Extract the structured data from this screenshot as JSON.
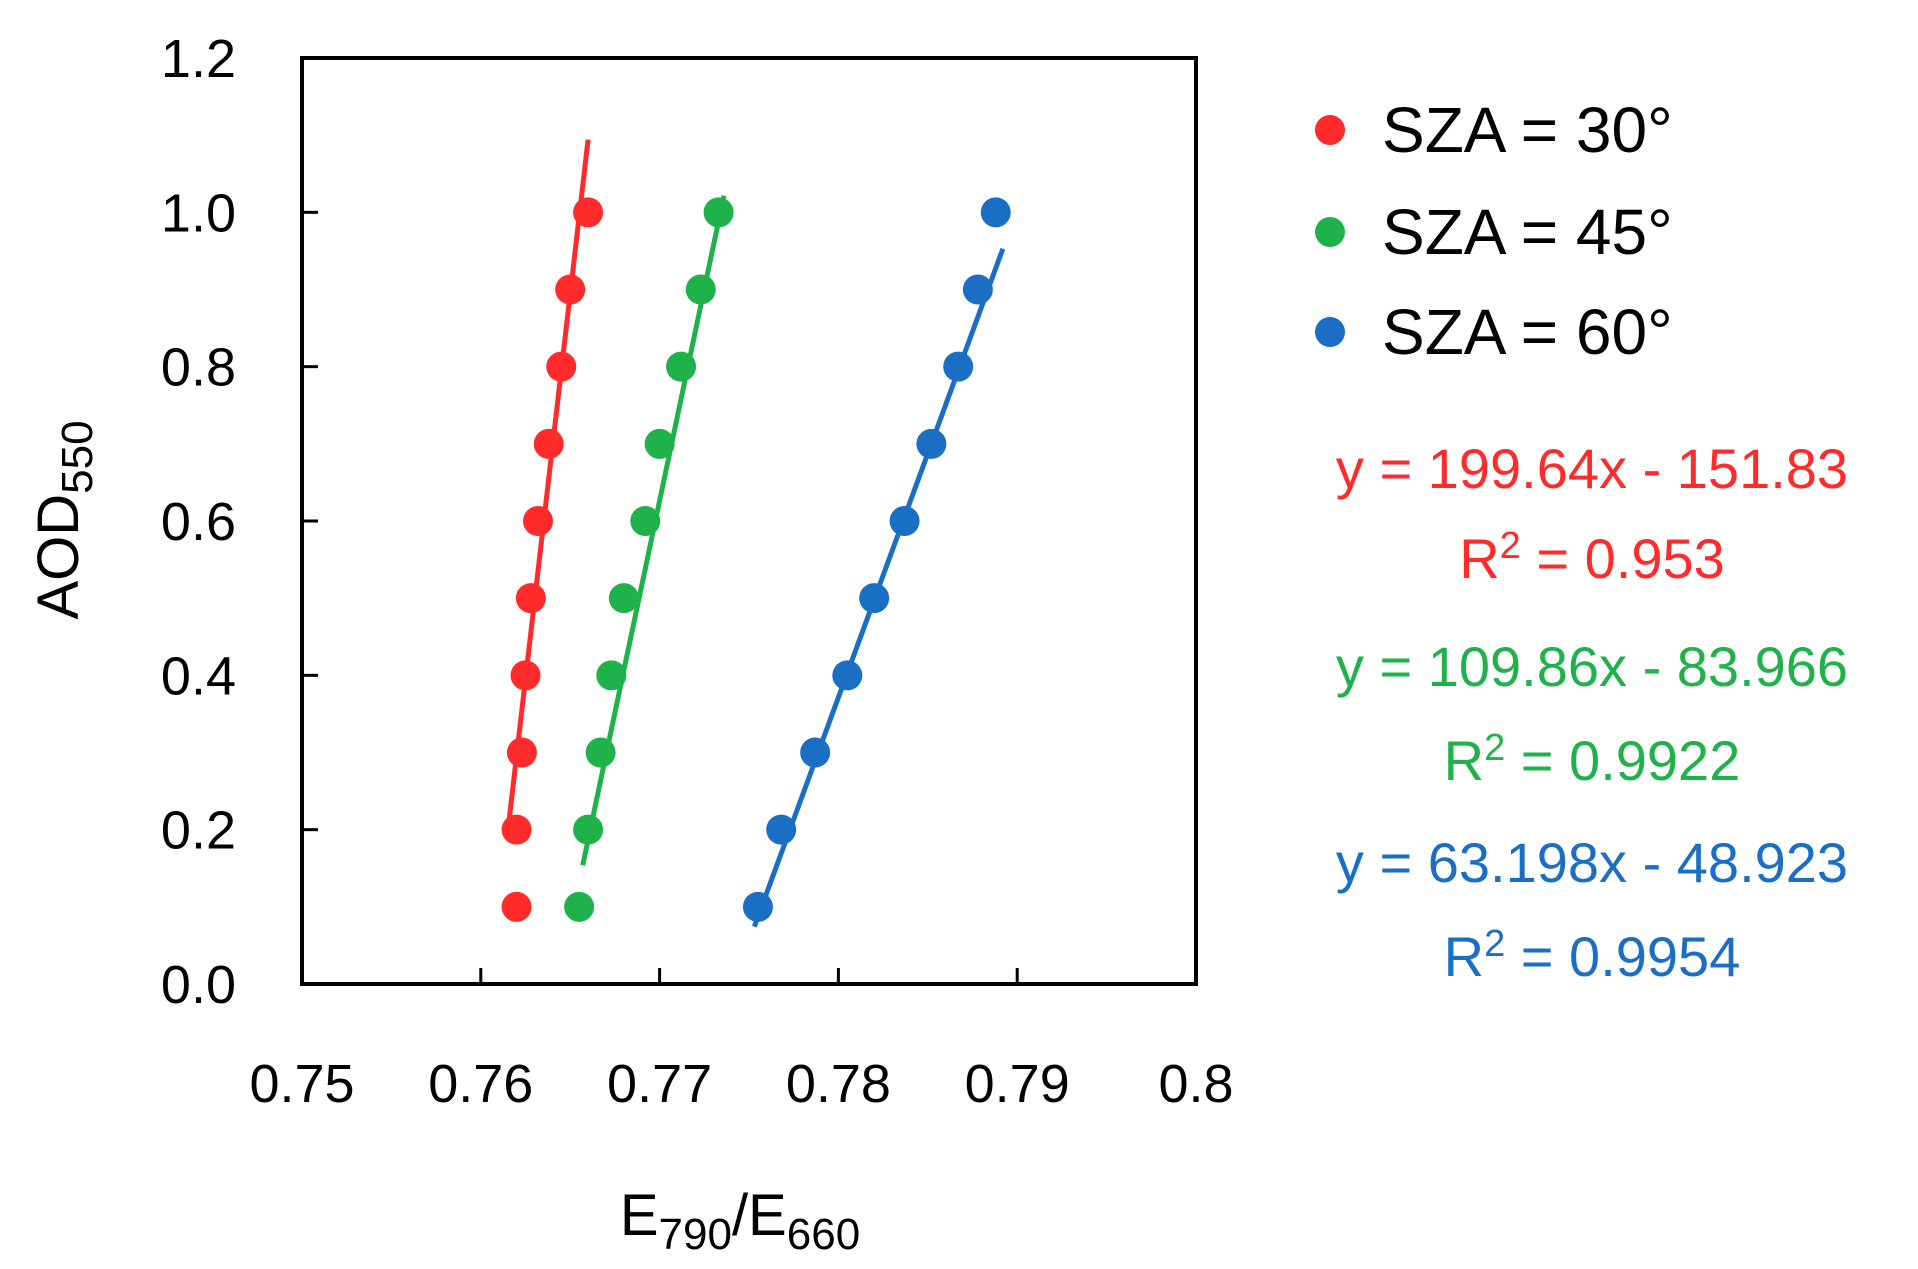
{
  "chart_data": {
    "type": "scatter",
    "title": "",
    "xlabel": {
      "main": "E",
      "sub1": "790",
      "slash": "/E",
      "sub2": "660"
    },
    "ylabel": {
      "main": "AOD",
      "sub": "550"
    },
    "xlim": [
      0.75,
      0.8
    ],
    "ylim": [
      0.0,
      1.2
    ],
    "xticks": [
      0.75,
      0.76,
      0.77,
      0.78,
      0.79,
      0.8
    ],
    "xtick_labels": [
      "0.75",
      "0.76",
      "0.77",
      "0.78",
      "0.79",
      "0.8"
    ],
    "yticks": [
      0.0,
      0.2,
      0.4,
      0.6,
      0.8,
      1.0,
      1.2
    ],
    "ytick_labels": [
      "0.0",
      "0.2",
      "0.4",
      "0.6",
      "0.8",
      "1.0",
      "1.2"
    ],
    "grid": false,
    "legend_position": "right",
    "series": [
      {
        "name": "SZA = 30°",
        "color": "#ff2a2a",
        "x": [
          0.762,
          0.762,
          0.7623,
          0.7625,
          0.7628,
          0.7632,
          0.7638,
          0.7645,
          0.766
        ],
        "y": [
          0.1,
          0.2,
          0.3,
          0.4,
          0.5,
          0.6,
          0.7,
          0.8,
          1.0
        ],
        "extra_points": [
          {
            "x": 0.765,
            "y": 0.9
          }
        ],
        "fit": {
          "slope": 199.64,
          "intercept": -151.83,
          "x_range": [
            0.7615,
            0.766
          ]
        },
        "equation": "y = 199.64x - 151.83",
        "r2_label": "R",
        "r2_sup": "2",
        "r2_value": " = 0.953"
      },
      {
        "name": "SZA = 45°",
        "color": "#1fb24a",
        "x": [
          0.7655,
          0.766,
          0.7667,
          0.7673,
          0.768,
          0.7692,
          0.77,
          0.7712,
          0.7723,
          0.7733
        ],
        "y": [
          0.1,
          0.2,
          0.3,
          0.4,
          0.5,
          0.6,
          0.7,
          0.8,
          0.9,
          1.0
        ],
        "extra_points": [],
        "fit": {
          "slope": 109.86,
          "intercept": -83.966,
          "x_range": [
            0.7657,
            0.7736
          ]
        },
        "equation": "y = 109.86x - 83.966",
        "r2_label": "R",
        "r2_sup": "2",
        "r2_value": " = 0.9922"
      },
      {
        "name": "SZA = 60°",
        "color": "#1a6fc4",
        "x": [
          0.7755,
          0.7768,
          0.7787,
          0.7805,
          0.782,
          0.7837,
          0.7852,
          0.7867,
          0.7878,
          0.7888
        ],
        "y": [
          0.1,
          0.2,
          0.3,
          0.4,
          0.5,
          0.6,
          0.7,
          0.8,
          0.9,
          1.0
        ],
        "extra_points": [],
        "fit": {
          "slope": 63.198,
          "intercept": -48.923,
          "x_range": [
            0.7753,
            0.7892
          ]
        },
        "equation": "y = 63.198x - 48.923",
        "r2_label": "R",
        "r2_sup": "2",
        "r2_value": " = 0.9954"
      }
    ]
  }
}
